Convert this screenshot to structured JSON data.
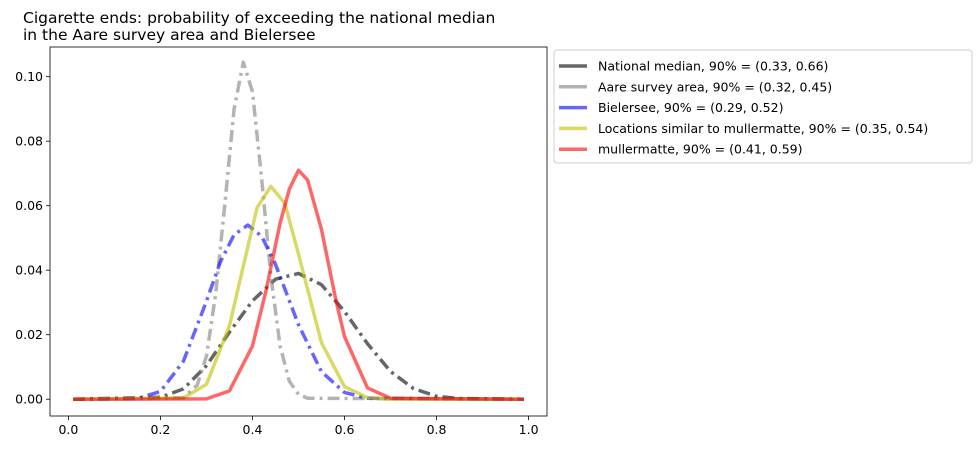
{
  "chart_data": {
    "type": "line",
    "title_lines": [
      "Cigarette ends: probability of exceeding the national median",
      "in the Aare survey area and Bielersee"
    ],
    "xlabel": "",
    "ylabel": "",
    "xlim": [
      -0.04,
      1.04
    ],
    "ylim": [
      -0.0052,
      0.1092
    ],
    "x_ticks": [
      0.0,
      0.2,
      0.4,
      0.6,
      0.8,
      1.0
    ],
    "x_tick_labels": [
      "0.0",
      "0.2",
      "0.4",
      "0.6",
      "0.8",
      "1.0"
    ],
    "y_ticks": [
      0.0,
      0.02,
      0.04,
      0.06,
      0.08,
      0.1
    ],
    "y_tick_labels": [
      "0.00",
      "0.02",
      "0.04",
      "0.06",
      "0.08",
      "0.10"
    ],
    "grid": false,
    "legend_position": "outside-right-top",
    "series": [
      {
        "name": "National median, 90% = (0.33, 0.66)",
        "color": "#000000",
        "opacity": 0.6,
        "dash": "dashdot",
        "x": [
          0.01,
          0.2,
          0.25,
          0.3,
          0.35,
          0.4,
          0.45,
          0.5,
          0.55,
          0.6,
          0.65,
          0.7,
          0.75,
          0.8,
          0.85,
          0.99
        ],
        "y": [
          0.0,
          0.0006,
          0.0032,
          0.0104,
          0.0208,
          0.0305,
          0.0372,
          0.039,
          0.0355,
          0.0272,
          0.0172,
          0.0086,
          0.0033,
          0.0009,
          0.0002,
          0.0
        ]
      },
      {
        "name": "Aare survey area, 90% = (0.32, 0.45)",
        "color": "#808080",
        "opacity": 0.6,
        "dash": "dashdot",
        "x": [
          0.01,
          0.25,
          0.28,
          0.3,
          0.32,
          0.34,
          0.36,
          0.38,
          0.4,
          0.42,
          0.44,
          0.46,
          0.48,
          0.5,
          0.52,
          0.99
        ],
        "y": [
          0.0,
          0.0005,
          0.0044,
          0.0134,
          0.0326,
          0.0606,
          0.0899,
          0.1045,
          0.0953,
          0.0683,
          0.0381,
          0.0165,
          0.0056,
          0.0015,
          0.0003,
          0.0
        ]
      },
      {
        "name": "Bielersee, 90% = (0.29, 0.52)",
        "color": "#0000ff",
        "opacity": 0.6,
        "dash": "dashdot",
        "x": [
          0.01,
          0.15,
          0.2,
          0.25,
          0.3,
          0.33,
          0.36,
          0.39,
          0.42,
          0.45,
          0.5,
          0.55,
          0.6,
          0.65,
          0.99
        ],
        "y": [
          0.0,
          0.0002,
          0.0024,
          0.0118,
          0.0304,
          0.0425,
          0.051,
          0.054,
          0.0505,
          0.0418,
          0.0231,
          0.0085,
          0.0021,
          0.0003,
          0.0
        ]
      },
      {
        "name": "Locations similar to mullermatte, 90% = (0.35, 0.54)",
        "color": "#bfbf00",
        "opacity": 0.6,
        "dash": "solid",
        "x": [
          0.01,
          0.25,
          0.3,
          0.35,
          0.38,
          0.41,
          0.44,
          0.47,
          0.5,
          0.55,
          0.6,
          0.65,
          0.7,
          0.99
        ],
        "y": [
          0.0,
          0.0004,
          0.0046,
          0.0228,
          0.0412,
          0.0594,
          0.066,
          0.0608,
          0.045,
          0.0175,
          0.0039,
          0.0005,
          0.0,
          0.0
        ]
      },
      {
        "name": "mullermatte, 90% = (0.41, 0.59)",
        "color": "#ff0000",
        "opacity": 0.6,
        "dash": "solid",
        "x": [
          0.01,
          0.3,
          0.35,
          0.4,
          0.43,
          0.46,
          0.48,
          0.5,
          0.52,
          0.55,
          0.58,
          0.6,
          0.65,
          0.7,
          0.99
        ],
        "y": [
          0.0,
          0.0001,
          0.0026,
          0.0165,
          0.034,
          0.0546,
          0.0651,
          0.071,
          0.0679,
          0.0526,
          0.0316,
          0.0194,
          0.0035,
          0.0003,
          0.0
        ]
      }
    ]
  }
}
